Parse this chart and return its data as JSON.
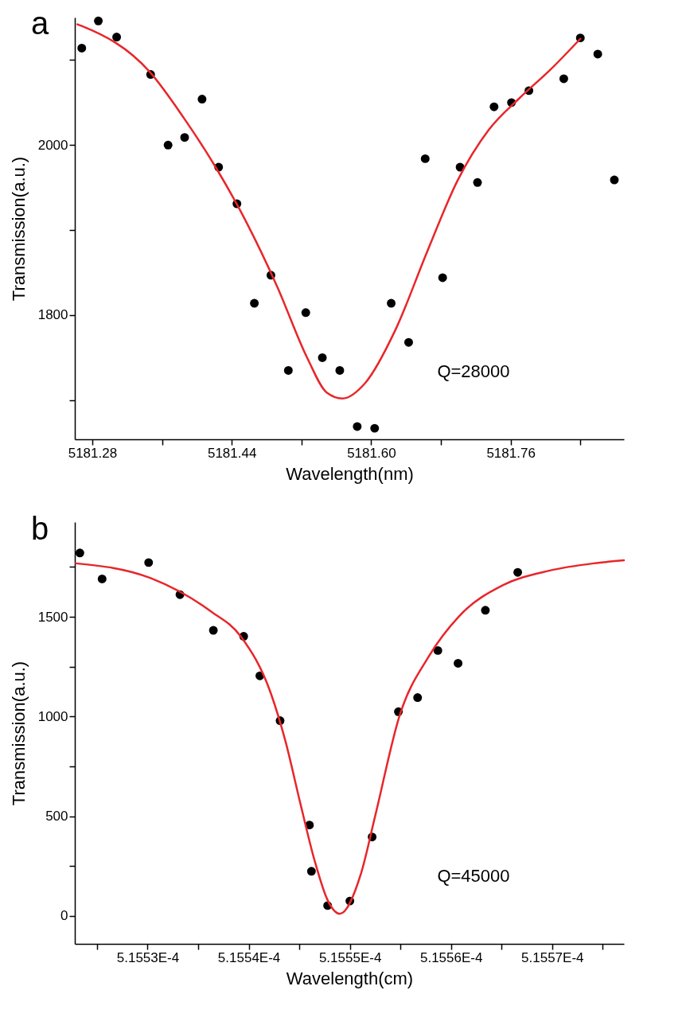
{
  "chart_data": [
    {
      "type": "scatter",
      "title": "a",
      "xlabel": "Wavelength(nm)",
      "ylabel": "Transmission(a.u.)",
      "annotations": [
        "Q=28000"
      ],
      "grid": false,
      "marker": "circle",
      "xlim": [
        5181.26,
        5181.89
      ],
      "ylim": [
        1654,
        2150
      ],
      "xticks": [
        5181.28,
        {
          "value": 5181.36,
          "label": null
        },
        5181.44,
        {
          "value": 5181.52,
          "label": null
        },
        {
          "value": 5181.6,
          "label": "5181.60"
        },
        {
          "value": 5181.68,
          "label": null
        },
        5181.76,
        {
          "value": 5181.84,
          "label": null
        }
      ],
      "yticks": [
        {
          "value": 1700,
          "label": null
        },
        1800,
        {
          "value": 1900,
          "label": null
        },
        2000,
        {
          "value": 2100,
          "label": null
        }
      ],
      "series": [
        {
          "type": "scatter",
          "color": "#000000",
          "x": [
            5181.268,
            5181.287,
            5181.308,
            5181.347,
            5181.367,
            5181.386,
            5181.406,
            5181.425,
            5181.446,
            5181.466,
            5181.485,
            5181.505,
            5181.525,
            5181.544,
            5181.564,
            5181.584,
            5181.604,
            5181.623,
            5181.643,
            5181.662,
            5181.682,
            5181.702,
            5181.722,
            5181.741,
            5181.761,
            5181.781,
            5181.821,
            5181.84,
            5181.86,
            5181.879
          ],
          "values": [
            2114,
            2146,
            2127,
            2083,
            2000,
            2009,
            2054,
            1974,
            1931,
            1814,
            1847,
            1735,
            1803,
            1750,
            1735,
            1669,
            1667,
            1814,
            1768,
            1984,
            1844,
            1974,
            1956,
            2045,
            2050,
            2064,
            2078,
            2126,
            2107,
            1959
          ]
        },
        {
          "type": "line",
          "color": "#e8262a",
          "marker": "none",
          "line_style": "solid",
          "x": [
            5181.263,
            5181.268,
            5181.346,
            5181.385,
            5181.421,
            5181.456,
            5181.492,
            5181.527,
            5181.549,
            5181.567,
            5181.593,
            5181.628,
            5181.664,
            5181.699,
            5181.735,
            5181.77,
            5181.806,
            5181.84
          ],
          "values": [
            2142,
            2140,
            2086,
            2032,
            1975,
            1911,
            1834,
            1749,
            1709,
            1702,
            1720,
            1783,
            1874,
            1958,
            2018,
            2055,
            2089,
            2125
          ]
        }
      ]
    },
    {
      "type": "scatter",
      "title": "b",
      "xlabel": "Wavelength(cm)",
      "ylabel": "Transmission(a.u.)",
      "annotations": [
        "Q=45000"
      ],
      "grid": false,
      "marker": "circle",
      "xlim": [
        0.0005155228,
        0.0005155771
      ],
      "ylim": [
        -140,
        1975
      ],
      "xticks": [
        {
          "value": 0.000515525,
          "label": null
        },
        {
          "value": 0.00051553,
          "label": "5.1553E-4"
        },
        {
          "value": 0.000515535,
          "label": null
        },
        {
          "value": 0.00051554,
          "label": "5.1554E-4"
        },
        {
          "value": 0.000515545,
          "label": null
        },
        {
          "value": 0.00051555,
          "label": "5.1555E-4"
        },
        {
          "value": 0.000515555,
          "label": null
        },
        {
          "value": 0.00051556,
          "label": "5.1556E-4"
        },
        {
          "value": 0.000515565,
          "label": null
        },
        {
          "value": 0.00051557,
          "label": "5.1557E-4"
        },
        {
          "value": 0.000515575,
          "label": null
        }
      ],
      "yticks": [
        0,
        {
          "value": 250,
          "label": null
        },
        500,
        {
          "value": 750,
          "label": null
        },
        1000,
        {
          "value": 1250,
          "label": null
        },
        1500,
        {
          "value": 1750,
          "label": null
        }
      ],
      "series": [
        {
          "type": "scatter",
          "color": "#000000",
          "x": [
            0.0005155233,
            0.0005155255,
            0.0005155301,
            0.0005155332,
            0.0005155365,
            0.0005155395,
            0.0005155411,
            0.0005155431,
            0.000515546,
            0.0005155462,
            0.0005155478,
            0.00051555,
            0.0005155522,
            0.0005155548,
            0.0005155567,
            0.0005155587,
            0.0005155607,
            0.0005155634,
            0.0005155666
          ],
          "values": [
            1820,
            1690,
            1772,
            1611,
            1432,
            1402,
            1204,
            979,
            456,
            224,
            52,
            75,
            396,
            1024,
            1095,
            1331,
            1267,
            1533,
            1723
          ]
        },
        {
          "type": "line",
          "color": "#e8262a",
          "marker": "none",
          "line_style": "solid",
          "x": [
            0.0005155229,
            0.0005155303,
            0.0005155362,
            0.0005155392,
            0.0005155422,
            0.0005155436,
            0.0005155451,
            0.0005155465,
            0.0005155478,
            0.000515549,
            0.0005155511,
            0.0005155525,
            0.0005155549,
            0.0005155578,
            0.0005155608,
            0.0005155652,
            0.0005155697,
            0.0005155741,
            0.0005155771
          ],
          "values": [
            1768,
            1694,
            1529,
            1402,
            1114,
            882,
            565,
            280,
            79,
            11,
            213,
            501,
            1002,
            1301,
            1503,
            1660,
            1731,
            1768,
            1783
          ]
        }
      ]
    }
  ]
}
